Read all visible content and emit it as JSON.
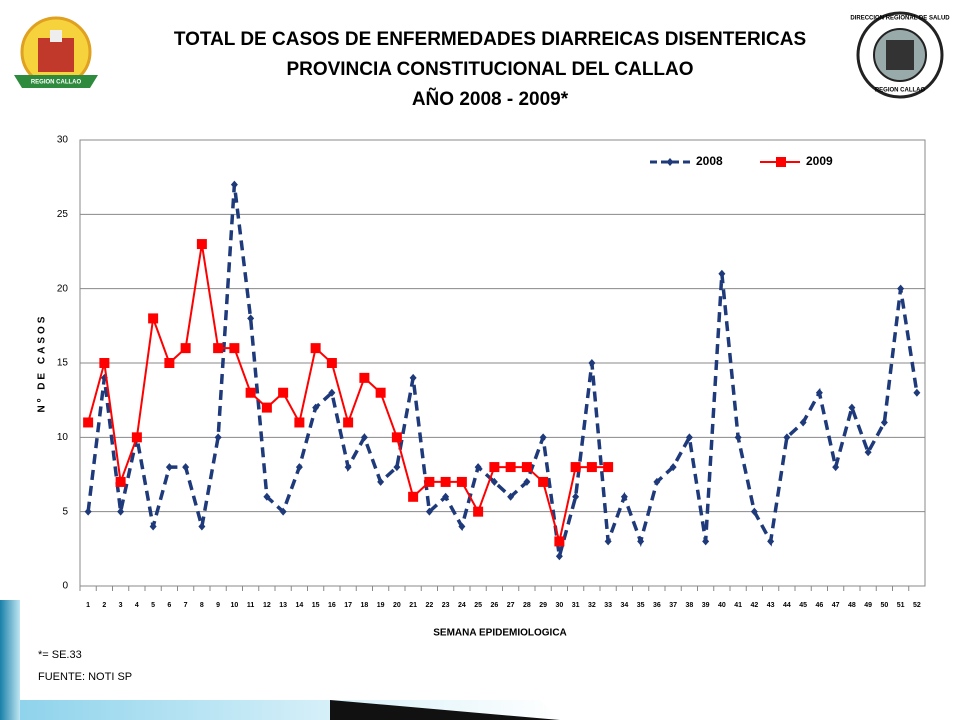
{
  "header": {
    "left_logo": "REGION CALLAO",
    "right_logo_top": "DIRECCION REGIONAL DE SALUD",
    "right_logo_bottom": "REGION CALLAO"
  },
  "chart_data": {
    "type": "line",
    "title": [
      "TOTAL DE CASOS DE ENFERMEDADES DIARREICAS  DISENTERICAS",
      "PROVINCIA CONSTITUCIONAL DEL CALLAO",
      "AÑO 2008 - 2009*"
    ],
    "x_label": "SEMANA  EPIDEMIOLOGICA",
    "y_label": "Nº DE CASOS",
    "categories": [
      "1",
      "2",
      "3",
      "4",
      "5",
      "6",
      "7",
      "8",
      "9",
      "10",
      "11",
      "12",
      "13",
      "14",
      "15",
      "16",
      "17",
      "18",
      "19",
      "20",
      "21",
      "22",
      "23",
      "24",
      "25",
      "26",
      "27",
      "28",
      "29",
      "30",
      "31",
      "32",
      "33",
      "34",
      "35",
      "36",
      "37",
      "38",
      "39",
      "40",
      "41",
      "42",
      "43",
      "44",
      "45",
      "46",
      "47",
      "48",
      "49",
      "50",
      "51",
      "52"
    ],
    "series": [
      {
        "name": "2008",
        "color": "#1f3a7a",
        "line_style": "dashed",
        "marker": "diamond",
        "values": [
          5,
          14,
          5,
          10,
          4,
          8,
          8,
          4,
          10,
          27,
          18,
          6,
          5,
          8,
          12,
          13,
          8,
          10,
          7,
          8,
          14,
          5,
          6,
          4,
          8,
          7,
          6,
          7,
          10,
          2,
          6,
          15,
          3,
          6,
          3,
          7,
          8,
          10,
          3,
          21,
          10,
          5,
          3,
          10,
          11,
          13,
          8,
          12,
          9,
          11,
          20,
          13
        ]
      },
      {
        "name": "2009",
        "color": "#ff0000",
        "line_style": "solid",
        "marker": "square",
        "values": [
          11,
          15,
          7,
          10,
          18,
          15,
          16,
          23,
          16,
          16,
          13,
          12,
          13,
          11,
          16,
          15,
          11,
          14,
          13,
          10,
          6,
          7,
          7,
          7,
          5,
          8,
          8,
          8,
          7,
          3,
          8,
          8,
          8,
          null,
          null,
          null,
          null,
          null,
          null,
          null,
          null,
          null,
          null,
          null,
          null,
          null,
          null,
          null,
          null,
          null,
          null,
          null
        ]
      }
    ],
    "ylim": [
      0,
      30
    ],
    "yticks": [
      0,
      5,
      10,
      15,
      20,
      25,
      30
    ],
    "grid": true,
    "legend": "upper right",
    "notes": [
      "*= SE.33",
      "FUENTE: NOTI SP"
    ]
  }
}
